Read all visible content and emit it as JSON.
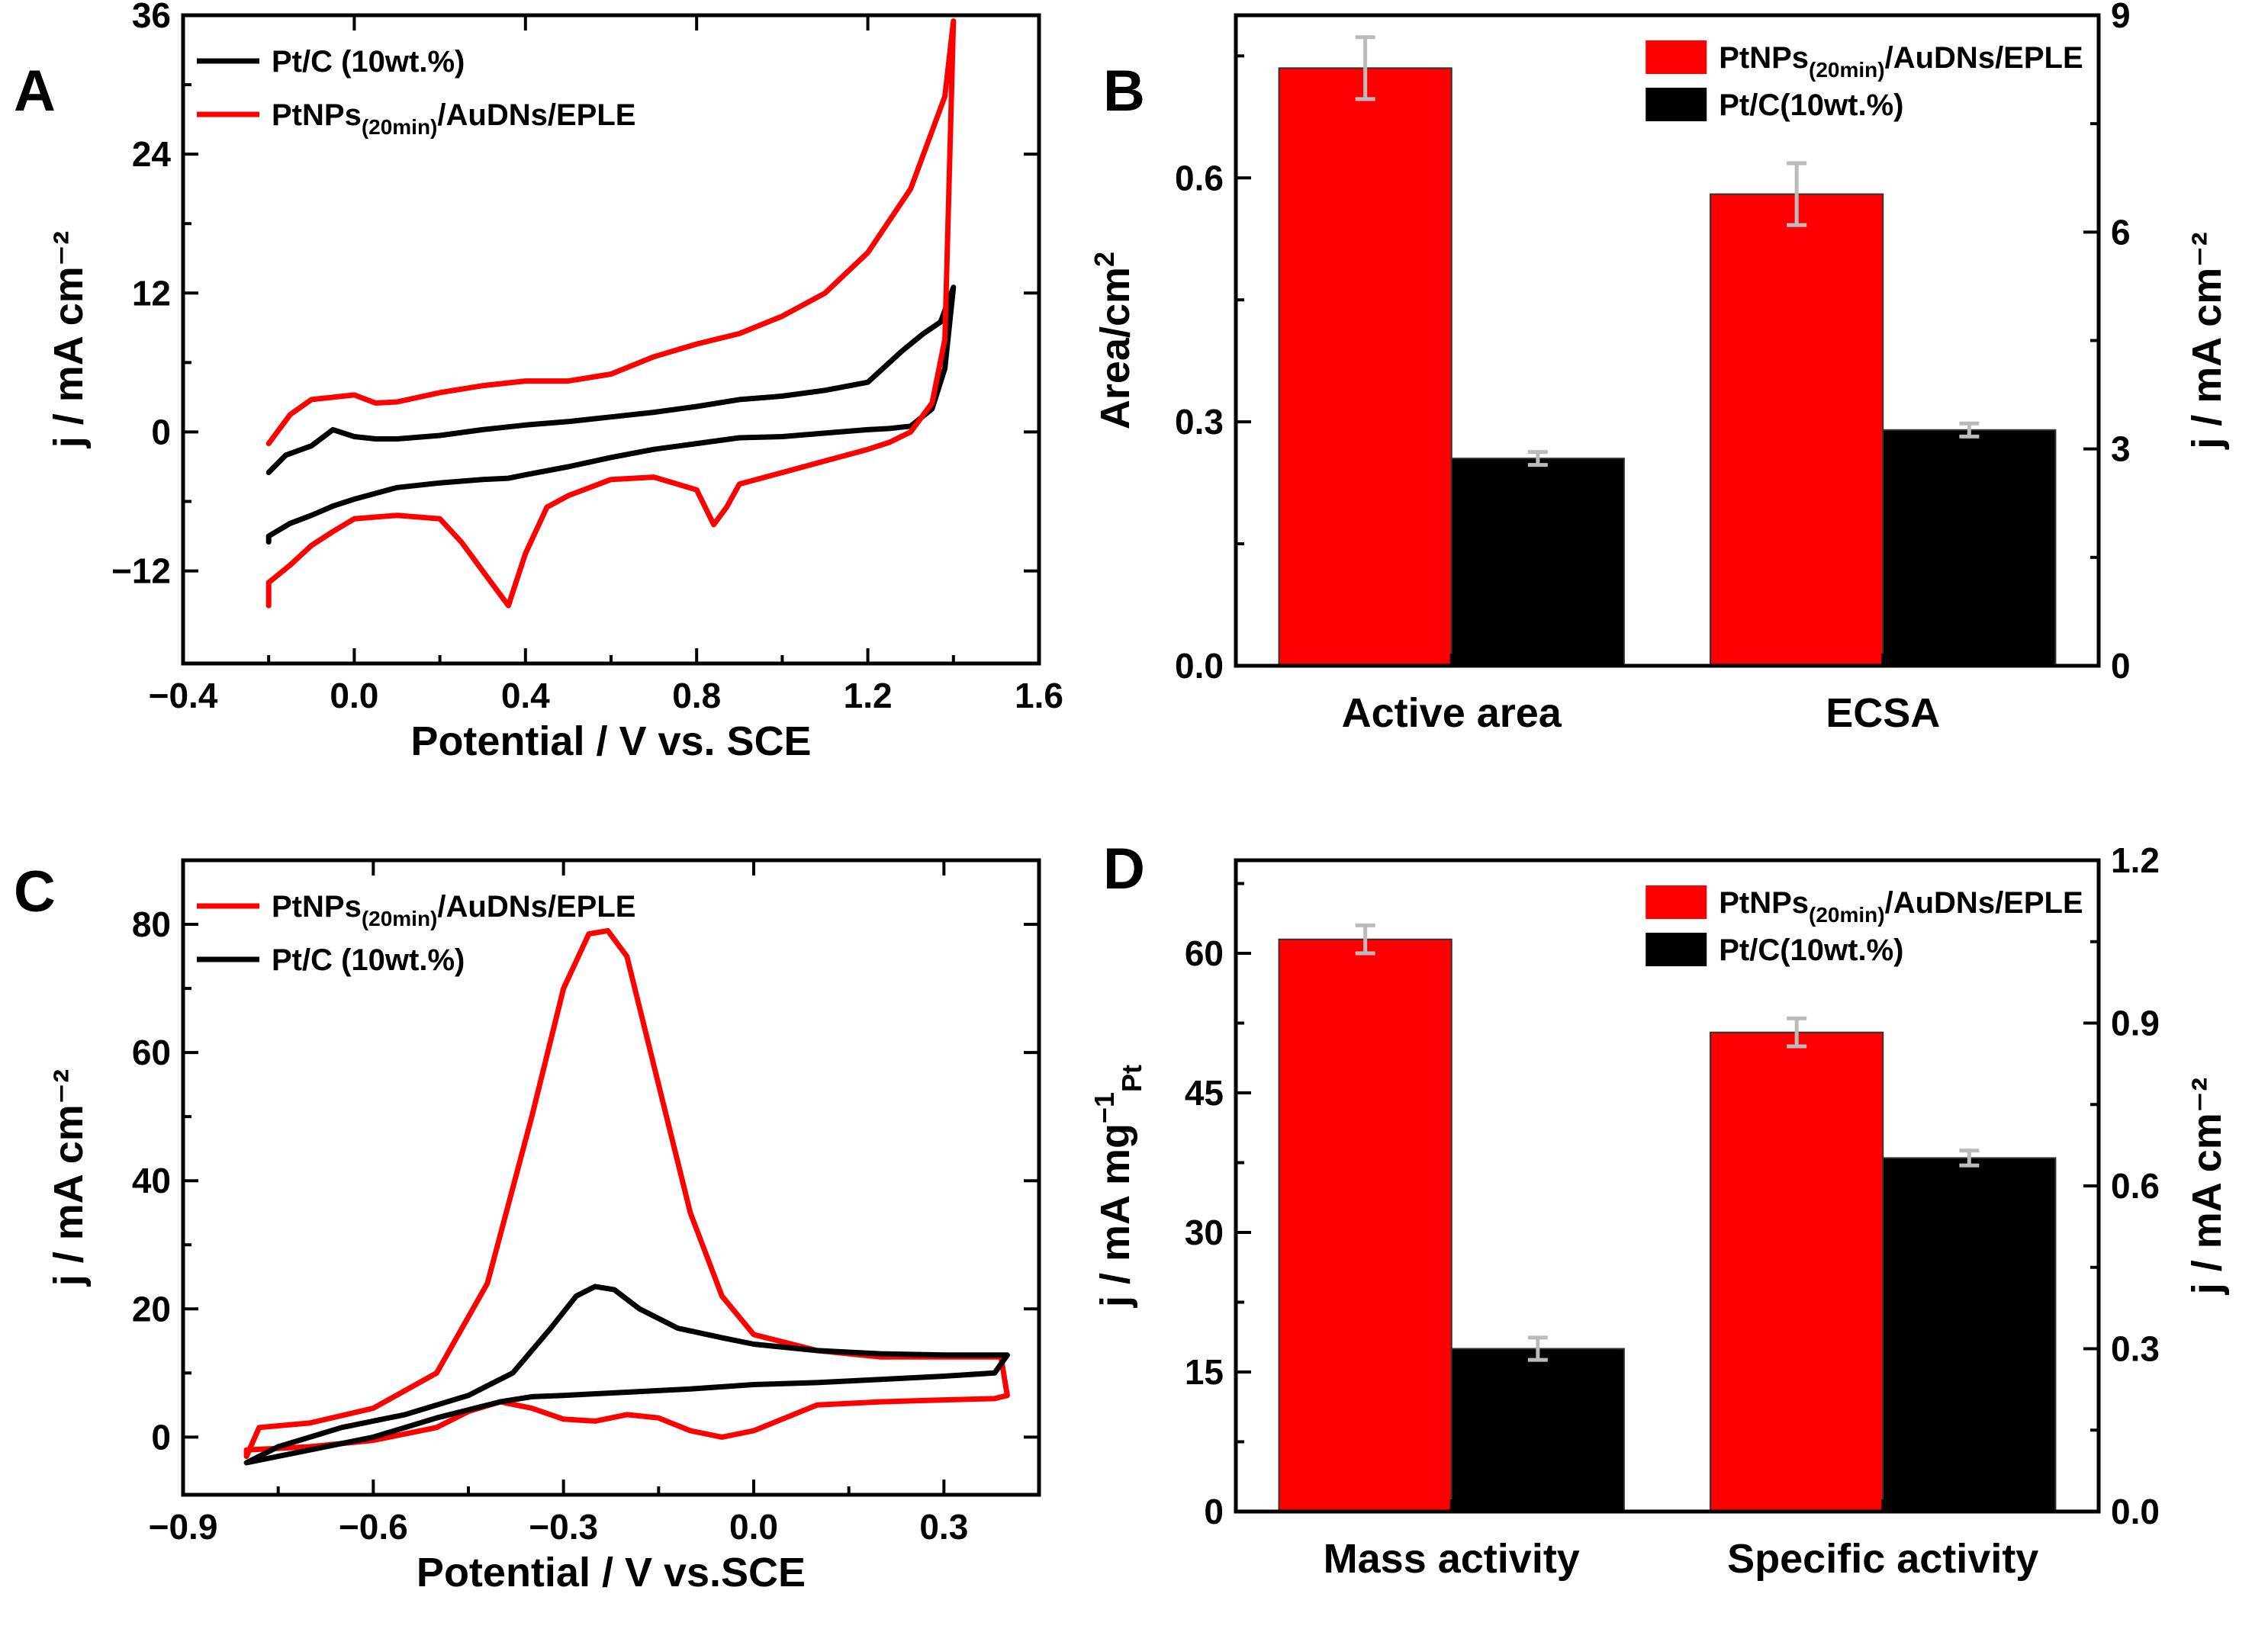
{
  "chart_data": [
    {
      "panel": "A",
      "type": "line",
      "xlabel": "Potential / V vs. SCE",
      "ylabel": "j / mA cm⁻²",
      "xlim": [
        -0.4,
        1.6
      ],
      "ylim": [
        -20,
        36
      ],
      "xticks": [
        -0.4,
        0.0,
        0.4,
        0.8,
        1.2,
        1.6
      ],
      "xtick_labels": [
        "−0.4",
        "0.0",
        "0.4",
        "0.8",
        "1.2",
        "1.6"
      ],
      "yticks": [
        -12,
        0,
        12,
        24,
        36
      ],
      "ytick_labels": [
        "−12",
        "0",
        "12",
        "24",
        "36"
      ],
      "legend_position": "top-left",
      "series": [
        {
          "name": "Pt/C (10wt.%)",
          "legend_base": "Pt/C (10wt.%)",
          "color": "#000000",
          "x": [
            -0.2,
            -0.16,
            -0.1,
            -0.05,
            0.0,
            0.05,
            0.1,
            0.2,
            0.3,
            0.4,
            0.5,
            0.6,
            0.7,
            0.8,
            0.9,
            1.0,
            1.1,
            1.2,
            1.28,
            1.33,
            1.37,
            1.4,
            1.38,
            1.35,
            1.3,
            1.25,
            1.2,
            1.1,
            1.0,
            0.9,
            0.8,
            0.7,
            0.6,
            0.5,
            0.4,
            0.36,
            0.3,
            0.2,
            0.1,
            0.0,
            -0.05,
            -0.1,
            -0.15,
            -0.2,
            -0.2
          ],
          "y": [
            -3.5,
            -2.0,
            -1.2,
            0.2,
            -0.4,
            -0.6,
            -0.6,
            -0.3,
            0.2,
            0.6,
            0.9,
            1.3,
            1.7,
            2.2,
            2.8,
            3.1,
            3.6,
            4.3,
            7.0,
            8.5,
            9.5,
            12.5,
            5.5,
            2.0,
            0.5,
            0.3,
            0.2,
            -0.1,
            -0.4,
            -0.5,
            -1.0,
            -1.5,
            -2.2,
            -3.0,
            -3.7,
            -4.0,
            -4.1,
            -4.4,
            -4.8,
            -5.8,
            -6.4,
            -7.2,
            -7.9,
            -9.0,
            -9.5
          ]
        },
        {
          "name": "PtNPs(20min)/AuDNs/EPLE",
          "legend_base": "PtNPs",
          "legend_sub": "(20min)",
          "legend_tail": "/AuDNs/EPLE",
          "color": "#ff0000",
          "x": [
            -0.2,
            -0.15,
            -0.1,
            -0.05,
            0.0,
            0.05,
            0.1,
            0.2,
            0.3,
            0.4,
            0.5,
            0.6,
            0.7,
            0.8,
            0.9,
            1.0,
            1.1,
            1.2,
            1.3,
            1.35,
            1.38,
            1.4,
            1.38,
            1.35,
            1.3,
            1.25,
            1.2,
            1.1,
            1.0,
            0.9,
            0.87,
            0.84,
            0.8,
            0.7,
            0.6,
            0.5,
            0.45,
            0.4,
            0.36,
            0.32,
            0.25,
            0.2,
            0.1,
            0.0,
            -0.05,
            -0.1,
            -0.15,
            -0.2,
            -0.2
          ],
          "y": [
            -1.0,
            1.5,
            2.8,
            3.0,
            3.2,
            2.5,
            2.6,
            3.4,
            4.0,
            4.4,
            4.4,
            5.0,
            6.5,
            7.6,
            8.5,
            10.0,
            12.0,
            15.5,
            21.0,
            26.0,
            29.0,
            35.5,
            8.0,
            2.5,
            0.0,
            -0.9,
            -1.5,
            -2.5,
            -3.5,
            -4.5,
            -6.5,
            -8.0,
            -5.0,
            -3.9,
            -4.1,
            -5.5,
            -6.5,
            -10.5,
            -15.0,
            -13.0,
            -9.5,
            -7.5,
            -7.2,
            -7.5,
            -8.6,
            -9.8,
            -11.5,
            -13.0,
            -15.0
          ]
        }
      ]
    },
    {
      "panel": "B",
      "type": "bar",
      "categories": [
        "Active area",
        "ECSA"
      ],
      "ylabel": "Area/cm²",
      "ylabel_base": "Area/cm",
      "ylabel_sup": "2",
      "ylabel_right": "j / mA cm⁻²",
      "ylim": [
        0.0,
        0.8
      ],
      "ylim_right": [
        0,
        9
      ],
      "yticks": [
        0.0,
        0.3,
        0.6
      ],
      "ytick_labels": [
        "0.0",
        "0.3",
        "0.6"
      ],
      "yticks_right": [
        0,
        3,
        6,
        9
      ],
      "ytick_labels_right": [
        "0",
        "3",
        "6",
        "9"
      ],
      "legend_position": "top-right",
      "series": [
        {
          "name": "PtNPs(20min)/AuDNs/EPLE",
          "legend_base": "PtNPs",
          "legend_sub": "(20min)",
          "legend_tail": "/AuDNs/EPLE",
          "color": "#ff0000",
          "values": [
            0.735,
            0.58
          ],
          "errors": [
            0.038,
            0.038
          ]
        },
        {
          "name": "Pt/C(10wt.%)",
          "legend_base": "Pt/C(10wt.%)",
          "color": "#000000",
          "values": [
            0.255,
            0.29
          ],
          "errors": [
            0.008,
            0.008
          ]
        }
      ]
    },
    {
      "panel": "C",
      "type": "line",
      "xlabel": "Potential / V vs.SCE",
      "ylabel": "j / mA cm⁻²",
      "xlim": [
        -0.9,
        0.45
      ],
      "ylim": [
        -9,
        90
      ],
      "xticks": [
        -0.9,
        -0.6,
        -0.3,
        0.0,
        0.3
      ],
      "xtick_labels": [
        "−0.9",
        "−0.6",
        "−0.3",
        "0.0",
        "0.3"
      ],
      "yticks": [
        0,
        20,
        40,
        60,
        80
      ],
      "ytick_labels": [
        "0",
        "20",
        "40",
        "60",
        "80"
      ],
      "legend_position": "top-left",
      "series": [
        {
          "name": "PtNPs(20min)/AuDNs/EPLE",
          "legend_base": "PtNPs",
          "legend_sub": "(20min)",
          "legend_tail": "/AuDNs/EPLE",
          "color": "#ff0000",
          "x": [
            -0.8,
            -0.78,
            -0.7,
            -0.6,
            -0.5,
            -0.42,
            -0.35,
            -0.3,
            -0.26,
            -0.23,
            -0.2,
            -0.15,
            -0.1,
            -0.05,
            0.0,
            0.1,
            0.2,
            0.3,
            0.39,
            0.4,
            0.38,
            0.3,
            0.2,
            0.1,
            0.0,
            -0.05,
            -0.1,
            -0.15,
            -0.2,
            -0.25,
            -0.3,
            -0.35,
            -0.4,
            -0.45,
            -0.5,
            -0.6,
            -0.7,
            -0.8,
            -0.8
          ],
          "y": [
            -3.0,
            1.5,
            2.2,
            4.5,
            10.0,
            24.0,
            50.0,
            70.0,
            78.5,
            79.0,
            75.0,
            55.0,
            35.0,
            22.0,
            16.0,
            13.5,
            12.5,
            12.5,
            12.5,
            6.5,
            6.0,
            5.8,
            5.5,
            5.0,
            1.0,
            0.0,
            1.0,
            3.0,
            3.5,
            2.5,
            2.8,
            4.5,
            5.5,
            4.0,
            1.5,
            -0.5,
            -1.5,
            -2.0,
            -3.0
          ]
        },
        {
          "name": "Pt/C (10wt.%)",
          "legend_base": "Pt/C (10wt.%)",
          "color": "#000000",
          "x": [
            -0.8,
            -0.75,
            -0.65,
            -0.55,
            -0.45,
            -0.38,
            -0.32,
            -0.28,
            -0.25,
            -0.22,
            -0.18,
            -0.12,
            -0.05,
            0.0,
            0.1,
            0.2,
            0.3,
            0.38,
            0.4,
            0.38,
            0.3,
            0.2,
            0.1,
            0.0,
            -0.1,
            -0.2,
            -0.3,
            -0.35,
            -0.4,
            -0.5,
            -0.6,
            -0.7,
            -0.8
          ],
          "y": [
            -4.0,
            -1.5,
            1.5,
            3.5,
            6.5,
            10.0,
            17.0,
            22.0,
            23.5,
            23.0,
            20.0,
            17.0,
            15.5,
            14.5,
            13.5,
            13.0,
            12.8,
            12.8,
            12.8,
            10.0,
            9.5,
            9.0,
            8.5,
            8.2,
            7.5,
            7.0,
            6.5,
            6.3,
            5.5,
            3.0,
            0.0,
            -2.0,
            -4.0
          ]
        }
      ]
    },
    {
      "panel": "D",
      "type": "bar",
      "categories": [
        "Mass activity",
        "Specific activity"
      ],
      "ylabel": "j / mA mg⁻¹Pt",
      "ylabel_base": "j / mA mg",
      "ylabel_sup": "−1",
      "ylabel_sub": "Pt",
      "ylabel_right": "j / mA cm⁻²",
      "ylim": [
        0,
        70
      ],
      "ylim_right": [
        0.0,
        1.2
      ],
      "yticks": [
        0,
        15,
        30,
        45,
        60
      ],
      "ytick_labels": [
        "0",
        "15",
        "30",
        "45",
        "60"
      ],
      "yticks_right": [
        0.0,
        0.3,
        0.6,
        0.9,
        1.2
      ],
      "ytick_labels_right": [
        "0.0",
        "0.3",
        "0.6",
        "0.9",
        "1.2"
      ],
      "legend_position": "top-right",
      "series": [
        {
          "name": "PtNPs(20min)/AuDNs/EPLE",
          "legend_base": "PtNPs",
          "legend_sub": "(20min)",
          "legend_tail": "/AuDNs/EPLE",
          "color": "#ff0000",
          "values": [
            61.5,
            51.5
          ],
          "errors": [
            1.5,
            1.5
          ]
        },
        {
          "name": "Pt/C(10wt.%)",
          "legend_base": "Pt/C(10wt.%)",
          "color": "#000000",
          "values": [
            17.5,
            38.0
          ],
          "errors": [
            1.2,
            0.8
          ]
        }
      ]
    }
  ]
}
